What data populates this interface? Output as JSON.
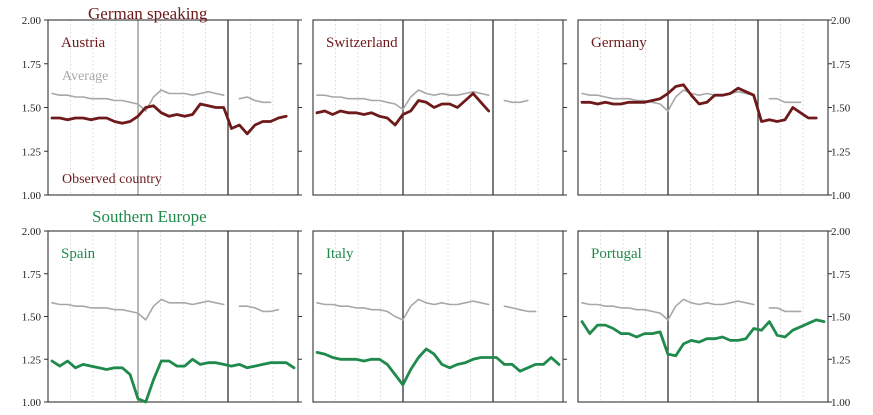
{
  "chart_data": {
    "type": "line",
    "groups": [
      {
        "title": "German speaking",
        "color": "#6e1a1a"
      },
      {
        "title": "Southern Europe",
        "color": "#1f8a4c"
      }
    ],
    "legend": {
      "average": "Average",
      "observed": "Observed country",
      "average_color": "#a8a8a8"
    },
    "yticks": [
      "2.00",
      "1.75",
      "1.50",
      "1.25",
      "1.00"
    ],
    "ylim": [
      1.0,
      2.0
    ],
    "panels": [
      {
        "name": "Austria",
        "group": 0,
        "average": [
          1.58,
          1.57,
          1.57,
          1.56,
          1.56,
          1.55,
          1.55,
          1.55,
          1.54,
          1.54,
          1.53,
          1.52,
          1.48,
          1.56,
          1.6,
          1.58,
          1.58,
          1.58,
          1.57,
          1.58,
          1.59,
          1.58,
          1.57,
          null,
          1.55,
          1.56,
          1.54,
          1.53,
          1.53,
          null,
          null,
          null
        ],
        "observed": [
          1.44,
          1.44,
          1.43,
          1.44,
          1.44,
          1.43,
          1.44,
          1.44,
          1.42,
          1.41,
          1.42,
          1.45,
          1.5,
          1.51,
          1.47,
          1.45,
          1.46,
          1.45,
          1.46,
          1.52,
          1.51,
          1.5,
          1.5,
          1.38,
          1.4,
          1.35,
          1.4,
          1.42,
          1.42,
          1.44,
          1.45,
          null
        ]
      },
      {
        "name": "Switzerland",
        "group": 0,
        "average": [
          1.57,
          1.57,
          1.56,
          1.56,
          1.55,
          1.55,
          1.55,
          1.54,
          1.54,
          1.53,
          1.52,
          1.49,
          1.56,
          1.6,
          1.58,
          1.57,
          1.58,
          1.57,
          1.57,
          1.58,
          1.59,
          1.58,
          1.57,
          null,
          1.54,
          1.53,
          1.53,
          1.54,
          null,
          null,
          null,
          null
        ],
        "observed": [
          1.47,
          1.48,
          1.46,
          1.48,
          1.47,
          1.47,
          1.46,
          1.47,
          1.45,
          1.44,
          1.4,
          1.46,
          1.48,
          1.54,
          1.53,
          1.5,
          1.52,
          1.52,
          1.5,
          1.54,
          1.58,
          1.53,
          1.48,
          null,
          null,
          null,
          null,
          null,
          null,
          null,
          null,
          null
        ]
      },
      {
        "name": "Germany",
        "group": 0,
        "average": [
          1.58,
          1.57,
          1.57,
          1.56,
          1.55,
          1.55,
          1.55,
          1.54,
          1.54,
          1.53,
          1.52,
          1.48,
          1.56,
          1.6,
          1.58,
          1.57,
          1.58,
          1.57,
          1.57,
          1.58,
          1.59,
          1.58,
          1.57,
          null,
          1.55,
          1.55,
          1.53,
          1.53,
          1.53,
          null,
          null,
          null
        ],
        "observed": [
          1.53,
          1.53,
          1.52,
          1.53,
          1.52,
          1.52,
          1.53,
          1.53,
          1.53,
          1.54,
          1.55,
          1.58,
          1.62,
          1.63,
          1.57,
          1.52,
          1.53,
          1.57,
          1.57,
          1.58,
          1.61,
          1.59,
          1.57,
          1.42,
          1.43,
          1.42,
          1.43,
          1.5,
          1.47,
          1.44,
          1.44,
          null
        ]
      },
      {
        "name": "Spain",
        "group": 1,
        "average": [
          1.58,
          1.57,
          1.57,
          1.56,
          1.56,
          1.55,
          1.55,
          1.55,
          1.54,
          1.54,
          1.53,
          1.52,
          1.48,
          1.56,
          1.6,
          1.58,
          1.58,
          1.58,
          1.57,
          1.58,
          1.59,
          1.58,
          1.57,
          null,
          1.56,
          1.56,
          1.55,
          1.53,
          1.53,
          1.54,
          null,
          null
        ],
        "observed": [
          1.24,
          1.21,
          1.24,
          1.2,
          1.22,
          1.21,
          1.2,
          1.19,
          1.2,
          1.2,
          1.16,
          1.02,
          1.0,
          1.13,
          1.24,
          1.24,
          1.21,
          1.21,
          1.25,
          1.22,
          1.23,
          1.23,
          1.22,
          1.21,
          1.22,
          1.2,
          1.21,
          1.22,
          1.23,
          1.23,
          1.23,
          1.2
        ]
      },
      {
        "name": "Italy",
        "group": 1,
        "average": [
          1.58,
          1.57,
          1.57,
          1.56,
          1.56,
          1.55,
          1.55,
          1.54,
          1.54,
          1.53,
          1.5,
          1.48,
          1.56,
          1.6,
          1.58,
          1.57,
          1.58,
          1.57,
          1.57,
          1.58,
          1.59,
          1.58,
          1.57,
          null,
          1.56,
          1.55,
          1.54,
          1.53,
          1.53,
          null,
          null,
          null
        ],
        "observed": [
          1.29,
          1.28,
          1.26,
          1.25,
          1.25,
          1.25,
          1.24,
          1.25,
          1.25,
          1.22,
          1.16,
          1.1,
          1.19,
          1.26,
          1.31,
          1.28,
          1.22,
          1.2,
          1.22,
          1.23,
          1.25,
          1.26,
          1.26,
          1.26,
          1.22,
          1.22,
          1.18,
          1.2,
          1.22,
          1.22,
          1.26,
          1.22
        ]
      },
      {
        "name": "Portugal",
        "group": 1,
        "average": [
          1.58,
          1.57,
          1.57,
          1.56,
          1.56,
          1.55,
          1.55,
          1.54,
          1.54,
          1.53,
          1.52,
          1.48,
          1.56,
          1.6,
          1.58,
          1.57,
          1.58,
          1.57,
          1.57,
          1.58,
          1.59,
          1.58,
          1.57,
          null,
          1.55,
          1.55,
          1.53,
          1.53,
          1.53,
          null,
          null,
          null
        ],
        "observed": [
          1.47,
          1.4,
          1.45,
          1.45,
          1.43,
          1.4,
          1.4,
          1.38,
          1.4,
          1.4,
          1.41,
          1.28,
          1.27,
          1.34,
          1.36,
          1.35,
          1.37,
          1.37,
          1.38,
          1.36,
          1.36,
          1.37,
          1.43,
          1.42,
          1.47,
          1.39,
          1.38,
          1.42,
          1.44,
          1.46,
          1.48,
          1.47
        ]
      }
    ]
  }
}
